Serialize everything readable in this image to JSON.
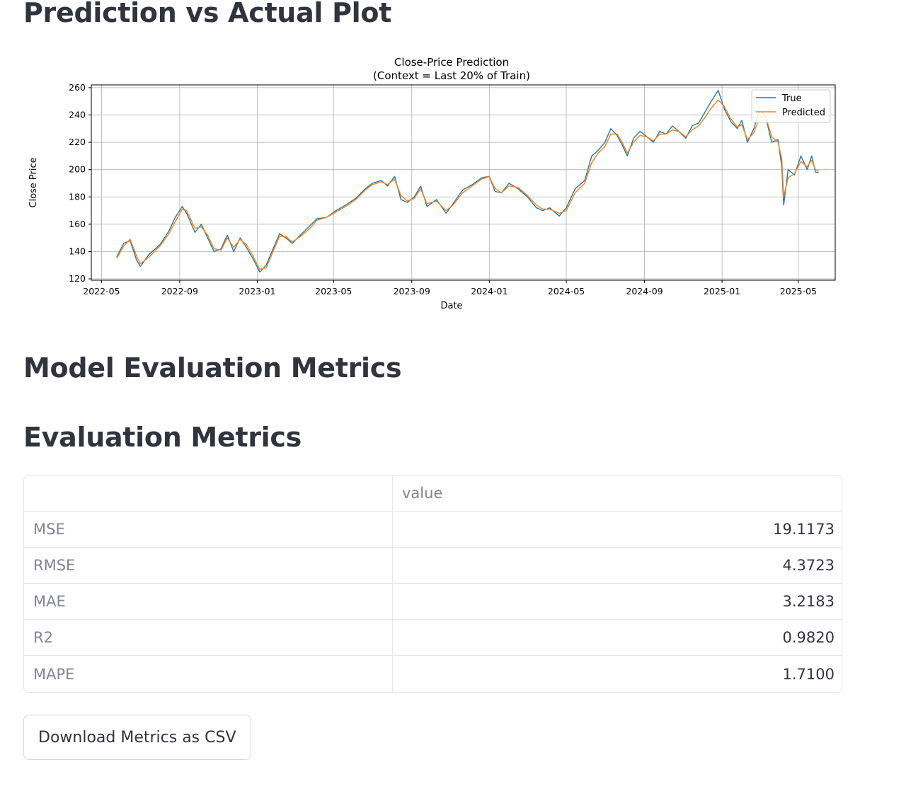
{
  "sections": {
    "plot_title": "Prediction vs Actual Plot",
    "model_title": "Model Evaluation Metrics",
    "eval_title": "Evaluation Metrics"
  },
  "chart_data": {
    "type": "line",
    "title": "Close-Price Prediction",
    "subtitle": "(Context = Last 20% of Train)",
    "xlabel": "Date",
    "ylabel": "Close Price",
    "ylim": [
      119,
      262
    ],
    "xlim": [
      "2022-04-15",
      "2025-06-28"
    ],
    "yticks": [
      120,
      140,
      160,
      180,
      200,
      220,
      240,
      260
    ],
    "xticks": [
      "2022-05",
      "2022-09",
      "2023-01",
      "2023-05",
      "2023-09",
      "2024-01",
      "2024-05",
      "2024-09",
      "2025-01",
      "2025-05"
    ],
    "grid": true,
    "legend": "top-right",
    "series": [
      {
        "name": "True",
        "color": "#1f77b4",
        "points": [
          [
            "2022-05-25",
            136
          ],
          [
            "2022-06-05",
            146
          ],
          [
            "2022-06-15",
            148
          ],
          [
            "2022-06-25",
            134
          ],
          [
            "2022-07-01",
            129
          ],
          [
            "2022-07-15",
            138
          ],
          [
            "2022-08-01",
            145
          ],
          [
            "2022-08-15",
            155
          ],
          [
            "2022-08-25",
            165
          ],
          [
            "2022-09-05",
            173
          ],
          [
            "2022-09-12",
            168
          ],
          [
            "2022-09-25",
            154
          ],
          [
            "2022-10-05",
            160
          ],
          [
            "2022-10-15",
            150
          ],
          [
            "2022-10-25",
            140
          ],
          [
            "2022-11-05",
            142
          ],
          [
            "2022-11-15",
            152
          ],
          [
            "2022-11-25",
            140
          ],
          [
            "2022-12-05",
            150
          ],
          [
            "2022-12-15",
            143
          ],
          [
            "2022-12-25",
            135
          ],
          [
            "2023-01-05",
            125
          ],
          [
            "2023-01-15",
            130
          ],
          [
            "2023-01-25",
            141
          ],
          [
            "2023-02-05",
            153
          ],
          [
            "2023-02-15",
            150
          ],
          [
            "2023-02-25",
            146
          ],
          [
            "2023-03-10",
            152
          ],
          [
            "2023-03-25",
            159
          ],
          [
            "2023-04-05",
            164
          ],
          [
            "2023-04-20",
            165
          ],
          [
            "2023-05-05",
            170
          ],
          [
            "2023-05-20",
            174
          ],
          [
            "2023-06-05",
            179
          ],
          [
            "2023-06-20",
            186
          ],
          [
            "2023-07-01",
            190
          ],
          [
            "2023-07-15",
            192
          ],
          [
            "2023-07-25",
            188
          ],
          [
            "2023-08-05",
            195
          ],
          [
            "2023-08-15",
            178
          ],
          [
            "2023-08-25",
            176
          ],
          [
            "2023-09-05",
            180
          ],
          [
            "2023-09-15",
            188
          ],
          [
            "2023-09-25",
            173
          ],
          [
            "2023-10-10",
            178
          ],
          [
            "2023-10-25",
            168
          ],
          [
            "2023-11-05",
            175
          ],
          [
            "2023-11-20",
            185
          ],
          [
            "2023-12-05",
            189
          ],
          [
            "2023-12-20",
            194
          ],
          [
            "2024-01-01",
            195
          ],
          [
            "2024-01-10",
            184
          ],
          [
            "2024-01-20",
            183
          ],
          [
            "2024-02-01",
            190
          ],
          [
            "2024-02-15",
            186
          ],
          [
            "2024-03-01",
            180
          ],
          [
            "2024-03-15",
            172
          ],
          [
            "2024-03-25",
            170
          ],
          [
            "2024-04-05",
            172
          ],
          [
            "2024-04-20",
            166
          ],
          [
            "2024-05-01",
            172
          ],
          [
            "2024-05-15",
            186
          ],
          [
            "2024-05-30",
            192
          ],
          [
            "2024-06-10",
            210
          ],
          [
            "2024-06-20",
            214
          ],
          [
            "2024-07-01",
            220
          ],
          [
            "2024-07-10",
            230
          ],
          [
            "2024-07-20",
            225
          ],
          [
            "2024-07-28",
            218
          ],
          [
            "2024-08-05",
            210
          ],
          [
            "2024-08-15",
            223
          ],
          [
            "2024-08-25",
            228
          ],
          [
            "2024-09-05",
            224
          ],
          [
            "2024-09-15",
            220
          ],
          [
            "2024-09-25",
            228
          ],
          [
            "2024-10-05",
            226
          ],
          [
            "2024-10-15",
            232
          ],
          [
            "2024-10-25",
            228
          ],
          [
            "2024-11-05",
            223
          ],
          [
            "2024-11-15",
            232
          ],
          [
            "2024-11-25",
            234
          ],
          [
            "2024-12-05",
            242
          ],
          [
            "2024-12-15",
            250
          ],
          [
            "2024-12-26",
            258
          ],
          [
            "2025-01-05",
            244
          ],
          [
            "2025-01-15",
            235
          ],
          [
            "2025-01-25",
            230
          ],
          [
            "2025-02-01",
            236
          ],
          [
            "2025-02-10",
            220
          ],
          [
            "2025-02-20",
            230
          ],
          [
            "2025-03-01",
            243
          ],
          [
            "2025-03-10",
            240
          ],
          [
            "2025-03-20",
            220
          ],
          [
            "2025-03-30",
            222
          ],
          [
            "2025-04-05",
            202
          ],
          [
            "2025-04-08",
            174
          ],
          [
            "2025-04-15",
            200
          ],
          [
            "2025-04-25",
            196
          ],
          [
            "2025-05-05",
            210
          ],
          [
            "2025-05-15",
            200
          ],
          [
            "2025-05-22",
            210
          ],
          [
            "2025-05-28",
            198
          ],
          [
            "2025-06-02",
            198
          ]
        ]
      },
      {
        "name": "Predicted",
        "color": "#ff7f0e",
        "points": [
          [
            "2022-05-25",
            135
          ],
          [
            "2022-06-05",
            144
          ],
          [
            "2022-06-15",
            149
          ],
          [
            "2022-06-25",
            137
          ],
          [
            "2022-07-01",
            131
          ],
          [
            "2022-07-15",
            136
          ],
          [
            "2022-08-01",
            144
          ],
          [
            "2022-08-15",
            153
          ],
          [
            "2022-08-25",
            162
          ],
          [
            "2022-09-05",
            171
          ],
          [
            "2022-09-12",
            170
          ],
          [
            "2022-09-25",
            157
          ],
          [
            "2022-10-05",
            158
          ],
          [
            "2022-10-15",
            152
          ],
          [
            "2022-10-25",
            142
          ],
          [
            "2022-11-05",
            141
          ],
          [
            "2022-11-15",
            150
          ],
          [
            "2022-11-25",
            143
          ],
          [
            "2022-12-05",
            149
          ],
          [
            "2022-12-15",
            145
          ],
          [
            "2022-12-25",
            137
          ],
          [
            "2023-01-05",
            127
          ],
          [
            "2023-01-15",
            128
          ],
          [
            "2023-01-25",
            139
          ],
          [
            "2023-02-05",
            151
          ],
          [
            "2023-02-15",
            151
          ],
          [
            "2023-02-25",
            147
          ],
          [
            "2023-03-10",
            151
          ],
          [
            "2023-03-25",
            157
          ],
          [
            "2023-04-05",
            163
          ],
          [
            "2023-04-20",
            165
          ],
          [
            "2023-05-05",
            169
          ],
          [
            "2023-05-20",
            173
          ],
          [
            "2023-06-05",
            178
          ],
          [
            "2023-06-20",
            185
          ],
          [
            "2023-07-01",
            189
          ],
          [
            "2023-07-15",
            191
          ],
          [
            "2023-07-25",
            189
          ],
          [
            "2023-08-05",
            193
          ],
          [
            "2023-08-15",
            181
          ],
          [
            "2023-08-25",
            177
          ],
          [
            "2023-09-05",
            179
          ],
          [
            "2023-09-15",
            186
          ],
          [
            "2023-09-25",
            175
          ],
          [
            "2023-10-10",
            177
          ],
          [
            "2023-10-25",
            170
          ],
          [
            "2023-11-05",
            174
          ],
          [
            "2023-11-20",
            183
          ],
          [
            "2023-12-05",
            188
          ],
          [
            "2023-12-20",
            193
          ],
          [
            "2024-01-01",
            195
          ],
          [
            "2024-01-10",
            186
          ],
          [
            "2024-01-20",
            183
          ],
          [
            "2024-02-01",
            188
          ],
          [
            "2024-02-15",
            187
          ],
          [
            "2024-03-01",
            181
          ],
          [
            "2024-03-15",
            174
          ],
          [
            "2024-03-25",
            171
          ],
          [
            "2024-04-05",
            171
          ],
          [
            "2024-04-20",
            168
          ],
          [
            "2024-05-01",
            170
          ],
          [
            "2024-05-15",
            183
          ],
          [
            "2024-05-30",
            190
          ],
          [
            "2024-06-10",
            205
          ],
          [
            "2024-06-20",
            212
          ],
          [
            "2024-07-01",
            217
          ],
          [
            "2024-07-10",
            226
          ],
          [
            "2024-07-20",
            226
          ],
          [
            "2024-07-28",
            220
          ],
          [
            "2024-08-05",
            212
          ],
          [
            "2024-08-15",
            220
          ],
          [
            "2024-08-25",
            225
          ],
          [
            "2024-09-05",
            224
          ],
          [
            "2024-09-15",
            221
          ],
          [
            "2024-09-25",
            226
          ],
          [
            "2024-10-05",
            226
          ],
          [
            "2024-10-15",
            229
          ],
          [
            "2024-10-25",
            228
          ],
          [
            "2024-11-05",
            224
          ],
          [
            "2024-11-15",
            229
          ],
          [
            "2024-11-25",
            232
          ],
          [
            "2024-12-05",
            238
          ],
          [
            "2024-12-15",
            245
          ],
          [
            "2024-12-26",
            251
          ],
          [
            "2025-01-05",
            246
          ],
          [
            "2025-01-15",
            237
          ],
          [
            "2025-01-25",
            231
          ],
          [
            "2025-02-01",
            233
          ],
          [
            "2025-02-10",
            222
          ],
          [
            "2025-02-20",
            227
          ],
          [
            "2025-03-01",
            238
          ],
          [
            "2025-03-10",
            240
          ],
          [
            "2025-03-20",
            224
          ],
          [
            "2025-03-30",
            220
          ],
          [
            "2025-04-05",
            208
          ],
          [
            "2025-04-08",
            180
          ],
          [
            "2025-04-15",
            194
          ],
          [
            "2025-04-25",
            197
          ],
          [
            "2025-05-05",
            206
          ],
          [
            "2025-05-15",
            202
          ],
          [
            "2025-05-22",
            207
          ],
          [
            "2025-05-28",
            200
          ],
          [
            "2025-06-02",
            199
          ]
        ]
      }
    ]
  },
  "table": {
    "header": [
      "",
      "value"
    ],
    "rows": [
      {
        "label": "MSE",
        "value": "19.1173"
      },
      {
        "label": "RMSE",
        "value": "4.3723"
      },
      {
        "label": "MAE",
        "value": "3.2183"
      },
      {
        "label": "R2",
        "value": "0.9820"
      },
      {
        "label": "MAPE",
        "value": "1.7100"
      }
    ]
  },
  "download_button": {
    "label": "Download Metrics as CSV"
  }
}
